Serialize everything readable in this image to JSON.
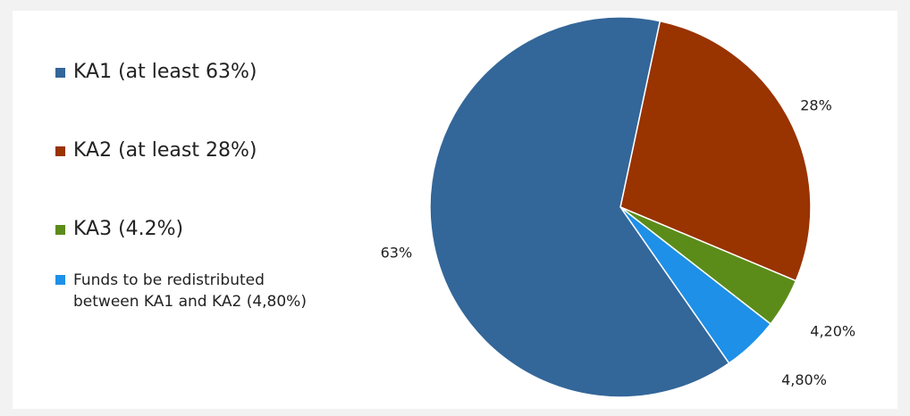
{
  "chart_data": {
    "type": "pie",
    "start_angle_deg": 12,
    "direction": "clockwise",
    "slices": [
      {
        "legend_label": "KA2 (at least 28%)",
        "value": 28,
        "data_label": "28%",
        "color": "#993300"
      },
      {
        "legend_label": "KA3 (4.2%)",
        "value": 4.2,
        "data_label": "4,20%",
        "color": "#5b8c1a"
      },
      {
        "legend_label": "Funds to be redistributed\nbetween KA1 and KA2 (4,80%)",
        "value": 4.8,
        "data_label": "4,80%",
        "color": "#1e90e8"
      },
      {
        "legend_label": "KA1 (at least 63%)",
        "value": 63,
        "data_label": "63%",
        "color": "#336699"
      }
    ],
    "legend_order": [
      3,
      0,
      1,
      2
    ],
    "legend_placement": "left"
  }
}
